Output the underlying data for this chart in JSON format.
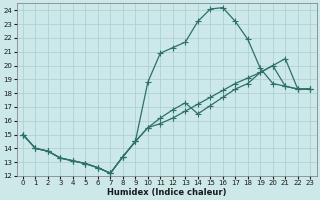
{
  "xlabel": "Humidex (Indice chaleur)",
  "bg_color": "#cce8e8",
  "grid_color": "#aacece",
  "line_color": "#2d7068",
  "xlim": [
    -0.5,
    23.5
  ],
  "ylim": [
    12,
    24.5
  ],
  "xticks": [
    0,
    1,
    2,
    3,
    4,
    5,
    6,
    7,
    8,
    9,
    10,
    11,
    12,
    13,
    14,
    15,
    16,
    17,
    18,
    19,
    20,
    21,
    22,
    23
  ],
  "yticks": [
    12,
    13,
    14,
    15,
    16,
    17,
    18,
    19,
    20,
    21,
    22,
    23,
    24
  ],
  "line1_x": [
    0,
    1,
    2,
    3,
    4,
    5,
    6,
    7,
    8,
    9,
    10,
    11,
    12,
    13,
    14,
    15,
    16,
    17,
    18,
    19,
    20,
    21,
    22,
    23
  ],
  "line1_y": [
    15.0,
    14.0,
    13.8,
    13.3,
    13.1,
    12.9,
    12.6,
    12.2,
    13.4,
    14.5,
    18.8,
    20.9,
    21.3,
    21.7,
    23.2,
    24.1,
    24.2,
    23.2,
    21.9,
    19.8,
    18.7,
    18.5,
    18.3,
    18.3
  ],
  "line2_x": [
    0,
    1,
    2,
    3,
    4,
    5,
    6,
    7,
    8,
    9,
    10,
    11,
    12,
    13,
    14,
    15,
    16,
    17,
    18,
    19,
    20,
    21,
    22,
    23
  ],
  "line2_y": [
    15.0,
    14.0,
    13.8,
    13.3,
    13.1,
    12.9,
    12.6,
    12.2,
    13.4,
    14.5,
    15.5,
    16.2,
    16.8,
    17.3,
    16.5,
    17.1,
    17.7,
    18.3,
    18.7,
    19.5,
    20.0,
    18.5,
    18.3,
    18.3
  ],
  "line3_x": [
    0,
    1,
    2,
    3,
    4,
    5,
    6,
    7,
    8,
    9,
    10,
    11,
    12,
    13,
    14,
    15,
    16,
    17,
    18,
    19,
    20,
    21,
    22,
    23
  ],
  "line3_y": [
    15.0,
    14.0,
    13.8,
    13.3,
    13.1,
    12.9,
    12.6,
    12.2,
    13.4,
    14.5,
    15.5,
    15.8,
    16.2,
    16.7,
    17.2,
    17.7,
    18.2,
    18.7,
    19.1,
    19.5,
    20.0,
    20.5,
    18.3,
    18.3
  ]
}
